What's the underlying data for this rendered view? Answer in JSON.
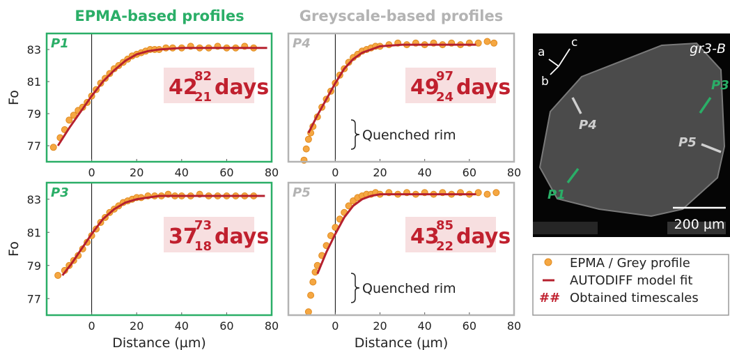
{
  "headers": [
    {
      "text": "EPMA-based profiles",
      "color": "#2aae67"
    },
    {
      "text": "Greyscale-based profiles",
      "color": "#b3b3b3"
    }
  ],
  "chart_data": [
    {
      "type": "scatter",
      "title": "P1",
      "frame_color": "#2aae67",
      "y_label": "Fo",
      "xlim": [
        -20,
        80
      ],
      "ylim": [
        76,
        84
      ],
      "xticks": [
        0,
        20,
        40,
        60,
        80
      ],
      "yticks": [
        77,
        79,
        81,
        83
      ],
      "vline": 0,
      "series": [
        {
          "type": "scatter",
          "color": "#f5a742",
          "x": [
            -17,
            -14,
            -12,
            -10,
            -8,
            -6,
            -4,
            -2,
            0,
            2,
            4,
            6,
            8,
            10,
            12,
            14,
            16,
            18,
            20,
            22,
            24,
            26,
            28,
            30,
            33,
            36,
            40,
            44,
            48,
            52,
            56,
            60,
            64,
            68,
            72
          ],
          "values": [
            76.9,
            77.5,
            78.0,
            78.6,
            78.9,
            79.2,
            79.4,
            79.7,
            80.1,
            80.5,
            80.9,
            81.2,
            81.5,
            81.8,
            82.0,
            82.2,
            82.4,
            82.6,
            82.7,
            82.8,
            82.9,
            83.0,
            83.0,
            83.0,
            83.1,
            83.1,
            83.1,
            83.2,
            83.1,
            83.1,
            83.2,
            83.1,
            83.1,
            83.2,
            83.1
          ]
        },
        {
          "type": "line",
          "color": "#b5202e",
          "x": [
            -15,
            -10,
            -5,
            0,
            5,
            10,
            15,
            20,
            25,
            30,
            40,
            50,
            60,
            70,
            78
          ],
          "values": [
            77.0,
            78.1,
            79.1,
            80.1,
            81.0,
            81.7,
            82.3,
            82.7,
            82.9,
            83.0,
            83.1,
            83.1,
            83.1,
            83.1,
            83.1
          ]
        }
      ],
      "annotation": {
        "value": "42",
        "upper": "82",
        "lower": "21",
        "unit": "days"
      }
    },
    {
      "type": "scatter",
      "title": "P4",
      "frame_color": "#b3b3b3",
      "xlim": [
        -21,
        80
      ],
      "ylim": [
        76,
        84
      ],
      "xticks": [
        0,
        20,
        40,
        60,
        80
      ],
      "vline": 0,
      "series": [
        {
          "type": "scatter",
          "color": "#f5a742",
          "x": [
            -14,
            -13,
            -12,
            -11,
            -10,
            -8,
            -6,
            -4,
            -2,
            0,
            2,
            4,
            6,
            8,
            10,
            12,
            14,
            16,
            18,
            20,
            24,
            28,
            32,
            36,
            40,
            44,
            48,
            52,
            56,
            60,
            64,
            68,
            71
          ],
          "values": [
            76.1,
            76.8,
            77.4,
            77.8,
            78.2,
            78.8,
            79.4,
            79.9,
            80.4,
            80.9,
            81.4,
            81.8,
            82.2,
            82.5,
            82.7,
            82.9,
            83.0,
            83.1,
            83.2,
            83.2,
            83.3,
            83.4,
            83.3,
            83.4,
            83.3,
            83.4,
            83.3,
            83.4,
            83.3,
            83.4,
            83.4,
            83.5,
            83.4
          ]
        },
        {
          "type": "line",
          "color": "#b5202e",
          "x": [
            -12,
            -8,
            -4,
            0,
            4,
            8,
            12,
            16,
            20,
            30,
            40,
            50,
            63
          ],
          "values": [
            77.8,
            78.9,
            79.9,
            80.9,
            81.8,
            82.4,
            82.8,
            83.0,
            83.2,
            83.3,
            83.3,
            83.3,
            83.3
          ]
        }
      ],
      "annotation": {
        "value": "49",
        "upper": "97",
        "lower": "24",
        "unit": "days"
      },
      "note": "Quenched rim"
    },
    {
      "type": "scatter",
      "title": "P3",
      "frame_color": "#2aae67",
      "y_label": "Fo",
      "x_label": "Distance (µm)",
      "xlim": [
        -20,
        80
      ],
      "ylim": [
        76,
        84
      ],
      "xticks": [
        0,
        20,
        40,
        60,
        80
      ],
      "yticks": [
        77,
        79,
        81,
        83
      ],
      "vline": 0,
      "series": [
        {
          "type": "scatter",
          "color": "#f5a742",
          "x": [
            -15,
            -12,
            -10,
            -8,
            -6,
            -4,
            -2,
            0,
            2,
            4,
            6,
            8,
            10,
            12,
            14,
            16,
            18,
            20,
            22,
            25,
            28,
            31,
            34,
            37,
            40,
            44,
            48,
            52,
            56,
            60,
            64,
            68,
            72
          ],
          "values": [
            78.4,
            78.7,
            79.0,
            79.3,
            79.6,
            80.0,
            80.4,
            80.8,
            81.2,
            81.6,
            81.9,
            82.2,
            82.4,
            82.6,
            82.8,
            82.9,
            83.0,
            83.1,
            83.1,
            83.2,
            83.2,
            83.2,
            83.3,
            83.2,
            83.2,
            83.2,
            83.3,
            83.2,
            83.2,
            83.2,
            83.2,
            83.2,
            83.2
          ]
        },
        {
          "type": "line",
          "color": "#b5202e",
          "x": [
            -13,
            -9,
            -5,
            0,
            5,
            10,
            15,
            20,
            25,
            30,
            40,
            50,
            60,
            77
          ],
          "values": [
            78.4,
            79.1,
            79.9,
            80.9,
            81.8,
            82.4,
            82.8,
            83.0,
            83.1,
            83.2,
            83.2,
            83.2,
            83.2,
            83.2
          ]
        }
      ],
      "annotation": {
        "value": "37",
        "upper": "73",
        "lower": "18",
        "unit": "days"
      }
    },
    {
      "type": "scatter",
      "title": "P5",
      "frame_color": "#b3b3b3",
      "x_label": "Distance (µm)",
      "xlim": [
        -21,
        80
      ],
      "ylim": [
        76,
        84
      ],
      "xticks": [
        0,
        20,
        40,
        60,
        80
      ],
      "vline": 0,
      "series": [
        {
          "type": "scatter",
          "color": "#f5a742",
          "x": [
            -12,
            -11,
            -10,
            -9,
            -8,
            -6,
            -4,
            -2,
            0,
            2,
            4,
            6,
            8,
            10,
            12,
            14,
            16,
            18,
            20,
            24,
            28,
            32,
            36,
            40,
            44,
            48,
            52,
            56,
            60,
            64,
            68,
            72
          ],
          "values": [
            76.2,
            77.2,
            78.0,
            78.6,
            79.0,
            79.6,
            80.2,
            80.8,
            81.3,
            81.8,
            82.2,
            82.6,
            82.9,
            83.1,
            83.2,
            83.3,
            83.3,
            83.4,
            83.3,
            83.4,
            83.3,
            83.4,
            83.3,
            83.4,
            83.3,
            83.4,
            83.3,
            83.4,
            83.3,
            83.4,
            83.3,
            83.4
          ]
        },
        {
          "type": "line",
          "color": "#b5202e",
          "x": [
            -8,
            -4,
            0,
            4,
            8,
            12,
            16,
            20,
            30,
            40,
            50,
            63
          ],
          "values": [
            78.5,
            79.8,
            80.9,
            81.9,
            82.6,
            83.0,
            83.2,
            83.3,
            83.3,
            83.3,
            83.3,
            83.3
          ]
        }
      ],
      "annotation": {
        "value": "43",
        "upper": "85",
        "lower": "22",
        "unit": "days"
      },
      "note": "Quenched rim"
    }
  ],
  "image_panel": {
    "axes": [
      "a",
      "b",
      "c"
    ],
    "sample": "gr3-B",
    "profiles": [
      "P4",
      "P3",
      "P5",
      "P1"
    ],
    "scale_bar": "200 µm"
  },
  "legend": {
    "items": [
      "EPMA / Grey profile",
      "AUTODIFF model fit",
      "Obtained timescales"
    ],
    "timescale_symbol": "##"
  }
}
